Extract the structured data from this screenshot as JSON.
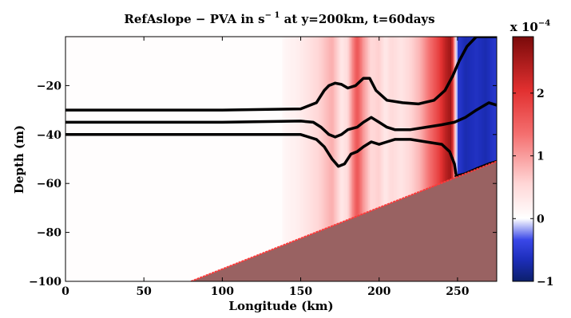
{
  "chart_data": {
    "type": "heatmap",
    "title_main": "RefAslope − PVA in s",
    "title_exp": "− 1",
    "title_tail": " at y=200km, t=60days",
    "xlabel": "Longitude (km)",
    "ylabel": "Depth (m)",
    "xlim": [
      0,
      275
    ],
    "ylim": [
      -100,
      0
    ],
    "x_ticks": [
      0,
      50,
      100,
      150,
      200,
      250
    ],
    "y_ticks": [
      -100,
      -80,
      -60,
      -40,
      -20
    ],
    "colorbar": {
      "multiplier_base": "x 10",
      "multiplier_exp": "−4",
      "range": [
        -1,
        2.9
      ],
      "ticks": [
        -1,
        0,
        1,
        2
      ],
      "colors": {
        "min": "#0c1f6b",
        "blue": "#2f3bdc",
        "white": "#ffffff",
        "red": "#e23030",
        "max": "#7a0a0a"
      }
    },
    "pva_profile": {
      "x": [
        0,
        138,
        139,
        148,
        156,
        163,
        170,
        174,
        176,
        180,
        183,
        186,
        190,
        195,
        200,
        204,
        208,
        214,
        220,
        226,
        232,
        238,
        243,
        246,
        250,
        255,
        262,
        268,
        275
      ],
      "v": [
        0.03,
        0.03,
        0.12,
        0.22,
        0.4,
        0.6,
        0.85,
        0.55,
        0.3,
        0.5,
        1.1,
        1.6,
        1.0,
        0.5,
        0.6,
        0.3,
        0.5,
        0.35,
        0.55,
        0.8,
        1.3,
        1.8,
        2.4,
        2.6,
        -0.5,
        -0.7,
        -0.6,
        -0.7,
        -0.5
      ]
    },
    "isolines": [
      {
        "x": [
          0,
          100,
          150,
          160,
          165,
          168,
          172,
          176,
          180,
          185,
          190,
          194,
          198,
          205,
          215,
          225,
          235,
          242,
          247,
          251,
          256,
          262,
          268,
          275
        ],
        "y": [
          -30,
          -30,
          -29.5,
          -27,
          -22,
          -20,
          -19,
          -19.5,
          -21,
          -20,
          -17,
          -17,
          -22,
          -26,
          -27,
          -27.5,
          -26,
          -22,
          -16,
          -10,
          -4,
          0,
          0,
          0
        ]
      },
      {
        "x": [
          0,
          100,
          150,
          158,
          163,
          168,
          172,
          176,
          180,
          186,
          190,
          195,
          200,
          205,
          210,
          220,
          230,
          240,
          248,
          255,
          262,
          270,
          275
        ],
        "y": [
          -35,
          -35,
          -34.5,
          -35,
          -37,
          -40,
          -41,
          -40,
          -38,
          -37,
          -35,
          -33,
          -35,
          -37,
          -38,
          -38,
          -37,
          -36,
          -35,
          -33,
          -30,
          -27,
          -28
        ]
      },
      {
        "x": [
          0,
          100,
          150,
          160,
          165,
          170,
          174,
          178,
          182,
          186,
          190,
          195,
          200,
          205,
          210,
          220,
          230,
          240,
          245,
          248,
          249
        ],
        "y": [
          -40,
          -40,
          -40,
          -42,
          -45,
          -50,
          -53,
          -52,
          -48,
          -47,
          -45,
          -43,
          -44,
          -43,
          -42,
          -42,
          -43,
          -44,
          -47,
          -52,
          -56
        ]
      },
      {
        "x": [
          249,
          255,
          262,
          270,
          275
        ],
        "y": [
          -57,
          -56,
          -54,
          -52,
          -51
        ]
      }
    ],
    "topography": {
      "x": [
        80,
        275
      ],
      "y": [
        -100,
        -51
      ],
      "fill": "#996262",
      "edge": "#ff3a3a"
    }
  }
}
